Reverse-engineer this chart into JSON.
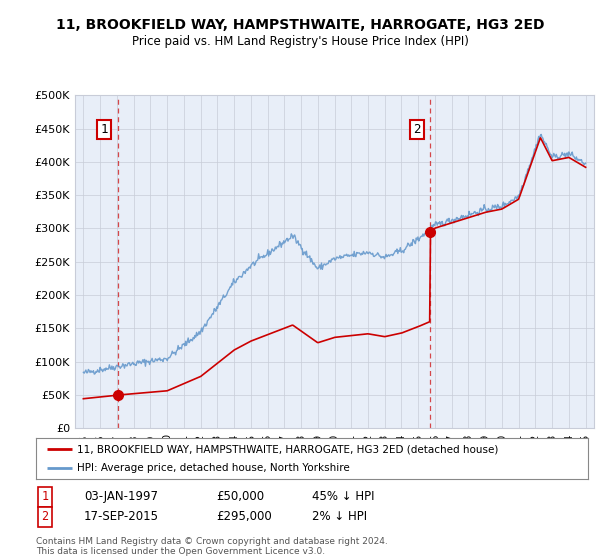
{
  "title": "11, BROOKFIELD WAY, HAMPSTHWAITE, HARROGATE, HG3 2ED",
  "subtitle": "Price paid vs. HM Land Registry's House Price Index (HPI)",
  "legend_line1": "11, BROOKFIELD WAY, HAMPSTHWAITE, HARROGATE, HG3 2ED (detached house)",
  "legend_line2": "HPI: Average price, detached house, North Yorkshire",
  "footer": "Contains HM Land Registry data © Crown copyright and database right 2024.\nThis data is licensed under the Open Government Licence v3.0.",
  "sale1_date": "03-JAN-1997",
  "sale1_price": 50000,
  "sale1_label": "1",
  "sale1_year": 1997.04,
  "sale2_date": "17-SEP-2015",
  "sale2_price": 295000,
  "sale2_label": "2",
  "sale2_year": 2015.72,
  "ylim": [
    0,
    500000
  ],
  "xlim_start": 1994.5,
  "xlim_end": 2025.5,
  "yticks": [
    0,
    50000,
    100000,
    150000,
    200000,
    250000,
    300000,
    350000,
    400000,
    450000,
    500000
  ],
  "ytick_labels": [
    "£0",
    "£50K",
    "£100K",
    "£150K",
    "£200K",
    "£250K",
    "£300K",
    "£350K",
    "£400K",
    "£450K",
    "£500K"
  ],
  "xticks": [
    1995,
    1996,
    1997,
    1998,
    1999,
    2000,
    2001,
    2002,
    2003,
    2004,
    2005,
    2006,
    2007,
    2008,
    2009,
    2010,
    2011,
    2012,
    2013,
    2014,
    2015,
    2016,
    2017,
    2018,
    2019,
    2020,
    2021,
    2022,
    2023,
    2024,
    2025
  ],
  "property_color": "#cc0000",
  "hpi_color": "#6699cc",
  "vline_color": "#cc0000",
  "annotation_box_color": "#cc0000",
  "plot_bg_color": "#e8eef8",
  "background_color": "#ffffff",
  "grid_color": "#c8ccd8",
  "note1_text": "1   03-JAN-1997        £50,000        45% ↓ HPI",
  "note2_text": "2   17-SEP-2015        £295,000        2% ↓ HPI"
}
